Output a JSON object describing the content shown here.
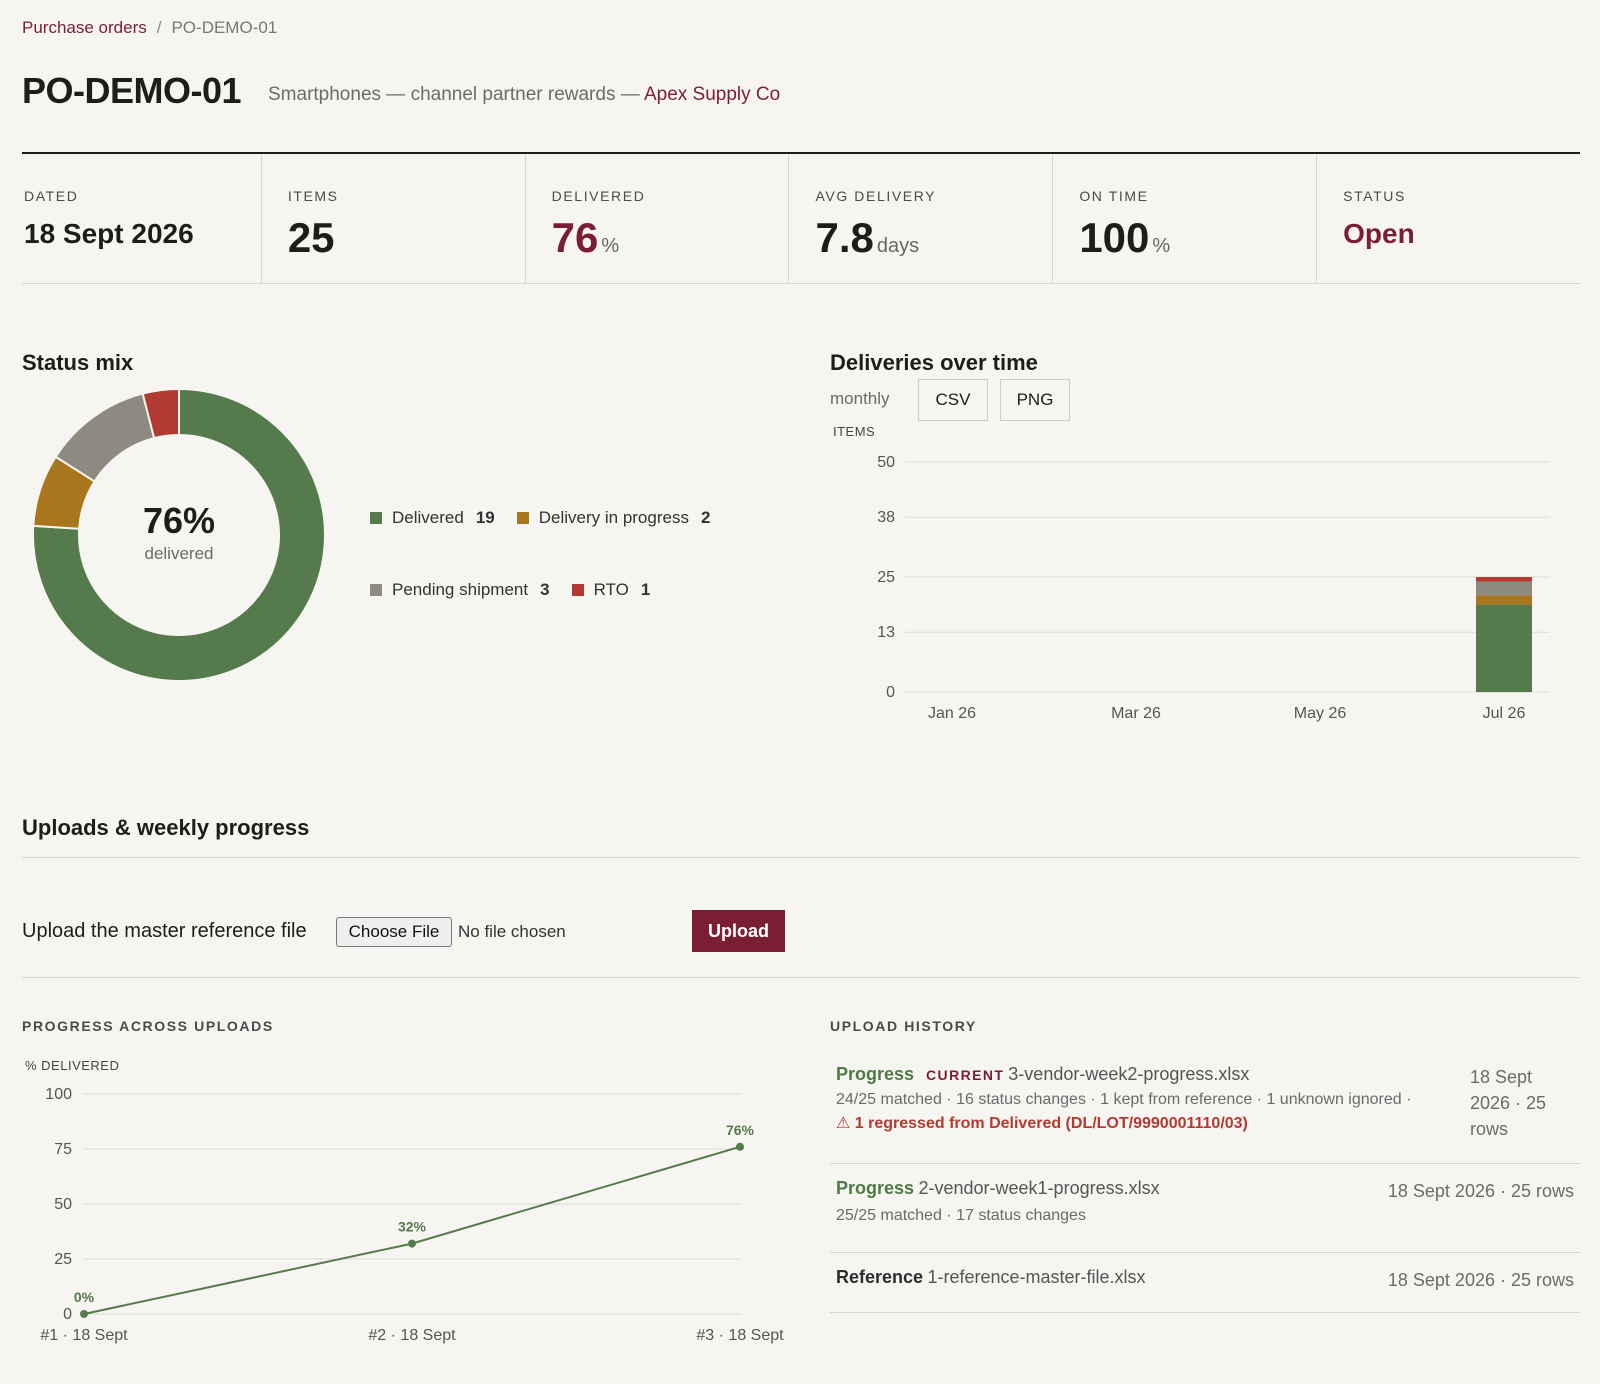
{
  "breadcrumb": {
    "parent": "Purchase orders",
    "separator": "/",
    "current": "PO-DEMO-01"
  },
  "header": {
    "title": "PO-DEMO-01",
    "subtitle": "Smartphones — channel partner rewards — ",
    "vendor": "Apex Supply Co"
  },
  "stats": {
    "dated": {
      "label": "DATED",
      "value": "18 Sept 2026"
    },
    "items": {
      "label": "ITEMS",
      "value": "25"
    },
    "delivered": {
      "label": "DELIVERED",
      "value": "76",
      "unit": "%"
    },
    "avg_delivery": {
      "label": "AVG DELIVERY",
      "value": "7.8",
      "unit": "days"
    },
    "on_time": {
      "label": "ON TIME",
      "value": "100",
      "unit": "%"
    },
    "status": {
      "label": "STATUS",
      "value": "Open"
    }
  },
  "colors": {
    "delivered": "#557a4c",
    "in_progress": "#a8761d",
    "pending": "#8d8a80",
    "rto": "#b33a32",
    "accent": "#7a1f33"
  },
  "status_mix": {
    "title": "Status mix",
    "center_value": "76%",
    "center_label": "delivered",
    "chart_data": {
      "type": "pie",
      "slices": [
        {
          "name": "Delivered",
          "value": 19,
          "color": "#557a4c"
        },
        {
          "name": "Delivery in progress",
          "value": 2,
          "color": "#a8761d"
        },
        {
          "name": "Pending shipment",
          "value": 3,
          "color": "#8d8a80"
        },
        {
          "name": "RTO",
          "value": 1,
          "color": "#b33a32"
        }
      ]
    }
  },
  "deliveries": {
    "title": "Deliveries over time",
    "granularity": "monthly",
    "csv_label": "CSV",
    "png_label": "PNG",
    "chart_data": {
      "type": "bar",
      "stacked": true,
      "ylabel": "ITEMS",
      "ylim": [
        0,
        50
      ],
      "yticks": [
        0,
        13,
        25,
        38,
        50
      ],
      "xticks": [
        "Jan 26",
        "Mar 26",
        "May 26",
        "Jul 26"
      ],
      "categories": [
        "Jan 26",
        "Feb 26",
        "Mar 26",
        "Apr 26",
        "May 26",
        "Jun 26",
        "Jul 26"
      ],
      "series": [
        {
          "name": "Delivered",
          "color": "#557a4c",
          "values": [
            0,
            0,
            0,
            0,
            0,
            0,
            19
          ]
        },
        {
          "name": "Delivery in progress",
          "color": "#a8761d",
          "values": [
            0,
            0,
            0,
            0,
            0,
            0,
            2
          ]
        },
        {
          "name": "Pending shipment",
          "color": "#8d8a80",
          "values": [
            0,
            0,
            0,
            0,
            0,
            0,
            3
          ]
        },
        {
          "name": "RTO",
          "color": "#b33a32",
          "values": [
            0,
            0,
            0,
            0,
            0,
            0,
            1
          ]
        }
      ]
    }
  },
  "uploads": {
    "title": "Uploads & weekly progress",
    "upload_label": "Upload the master reference file",
    "choose_file": "Choose File",
    "no_file": "No file chosen",
    "upload_button": "Upload"
  },
  "progress": {
    "heading": "PROGRESS ACROSS UPLOADS",
    "chart_data": {
      "type": "line",
      "ylabel": "% DELIVERED",
      "ylim": [
        0,
        100
      ],
      "yticks": [
        0,
        25,
        50,
        75,
        100
      ],
      "x": [
        "#1 · 18 Sept",
        "#2 · 18 Sept",
        "#3 · 18 Sept"
      ],
      "values": [
        0,
        32,
        76
      ],
      "labels": [
        "0%",
        "32%",
        "76%"
      ],
      "color": "#557a4c"
    }
  },
  "history": {
    "heading": "UPLOAD HISTORY",
    "items": [
      {
        "kind": "Progress",
        "badge": "CURRENT",
        "file": "3-vendor-week2-progress.xlsx",
        "meta": "24/25 matched · 16 status changes · 1 kept from reference · 1 unknown ignored ·",
        "warning": "⚠ 1 regressed from Delivered (DL/LOT/9990001110/03)",
        "date_line1": "18 Sept",
        "date_line2": "2026 · 25",
        "date_line3": "rows"
      },
      {
        "kind": "Progress",
        "file": "2-vendor-week1-progress.xlsx",
        "meta": "25/25 matched · 17 status changes",
        "date": "18 Sept 2026 · 25 rows"
      },
      {
        "kind": "Reference",
        "file": "1-reference-master-file.xlsx",
        "date": "18 Sept 2026 · 25 rows"
      }
    ]
  }
}
